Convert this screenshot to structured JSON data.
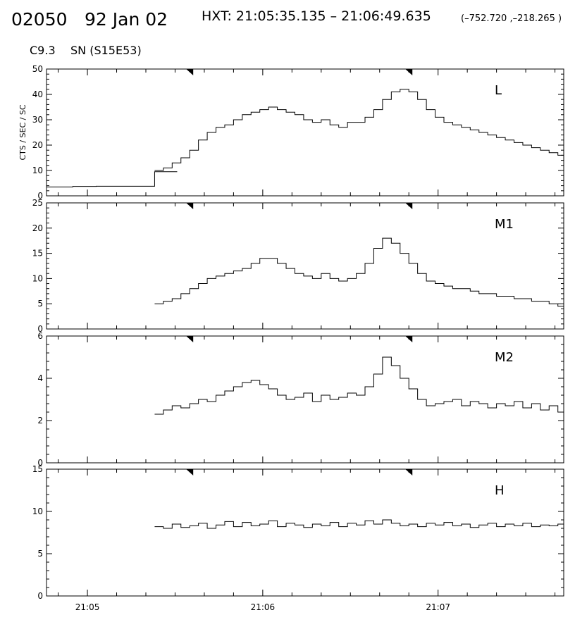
{
  "header": {
    "flare_id": "02050",
    "date": "92 Jan 02",
    "interval": "HXT: 21:05:35.135 – 21:06:49.635",
    "coords": "(–752.720 ,–218.265 )",
    "goes_class": "C9.3",
    "source": "SN (S15E53)"
  },
  "chart_data": [
    {
      "type": "line",
      "step": true,
      "panel_label": "L",
      "ylabel": "CTS / SEC / SC",
      "ylim": [
        0,
        50
      ],
      "yticks": [
        0,
        10,
        20,
        30,
        40,
        50
      ],
      "xlim": [
        "21:04:46",
        "21:07:43"
      ],
      "xticks": [
        "21:05",
        "21:06",
        "21:07"
      ],
      "accumulation_markers": [
        "21:05:35",
        "21:06:50"
      ],
      "series": [
        {
          "x": [
            "21:04:46",
            "21:04:55",
            "21:05:03",
            "21:05:15",
            "21:05:23",
            "21:05:30"
          ],
          "y": [
            3.5,
            3.7,
            3.8,
            3.8,
            9.5,
            9.5
          ]
        },
        {
          "x": [
            "21:05:23",
            "21:05:26",
            "21:05:29",
            "21:05:32",
            "21:05:35",
            "21:05:38",
            "21:05:41",
            "21:05:44",
            "21:05:47",
            "21:05:50",
            "21:05:53",
            "21:05:56",
            "21:05:59",
            "21:06:02",
            "21:06:05",
            "21:06:08",
            "21:06:11",
            "21:06:14",
            "21:06:17",
            "21:06:20",
            "21:06:23",
            "21:06:26",
            "21:06:29",
            "21:06:32",
            "21:06:35",
            "21:06:38",
            "21:06:41",
            "21:06:44",
            "21:06:47",
            "21:06:50",
            "21:06:53",
            "21:06:56",
            "21:06:59",
            "21:07:02",
            "21:07:05",
            "21:07:08",
            "21:07:11",
            "21:07:14",
            "21:07:17",
            "21:07:20",
            "21:07:23",
            "21:07:26",
            "21:07:29",
            "21:07:32",
            "21:07:35",
            "21:07:38",
            "21:07:41",
            "21:07:43"
          ],
          "y": [
            10,
            11,
            13,
            15,
            18,
            22,
            25,
            27,
            28,
            30,
            32,
            33,
            34,
            35,
            34,
            33,
            32,
            30,
            29,
            30,
            28,
            27,
            29,
            29,
            31,
            34,
            38,
            41,
            42,
            41,
            38,
            34,
            31,
            29,
            28,
            27,
            26,
            25,
            24,
            23,
            22,
            21,
            20,
            19,
            18,
            17,
            16,
            15
          ]
        }
      ]
    },
    {
      "type": "line",
      "step": true,
      "panel_label": "M1",
      "ylim": [
        0,
        25
      ],
      "yticks": [
        0,
        5,
        10,
        15,
        20,
        25
      ],
      "xlim": [
        "21:04:46",
        "21:07:43"
      ],
      "xticks": [
        "21:05",
        "21:06",
        "21:07"
      ],
      "accumulation_markers": [
        "21:05:35",
        "21:06:50"
      ],
      "series": [
        {
          "x": [
            "21:05:23",
            "21:05:26",
            "21:05:29",
            "21:05:32",
            "21:05:35",
            "21:05:38",
            "21:05:41",
            "21:05:44",
            "21:05:47",
            "21:05:50",
            "21:05:53",
            "21:05:56",
            "21:05:59",
            "21:06:02",
            "21:06:05",
            "21:06:08",
            "21:06:11",
            "21:06:14",
            "21:06:17",
            "21:06:20",
            "21:06:23",
            "21:06:26",
            "21:06:29",
            "21:06:32",
            "21:06:35",
            "21:06:38",
            "21:06:41",
            "21:06:44",
            "21:06:47",
            "21:06:50",
            "21:06:53",
            "21:06:56",
            "21:06:59",
            "21:07:02",
            "21:07:05",
            "21:07:08",
            "21:07:11",
            "21:07:14",
            "21:07:17",
            "21:07:20",
            "21:07:23",
            "21:07:26",
            "21:07:29",
            "21:07:32",
            "21:07:35",
            "21:07:38",
            "21:07:41",
            "21:07:43"
          ],
          "y": [
            5,
            5.5,
            6,
            7,
            8,
            9,
            10,
            10.5,
            11,
            11.5,
            12,
            13,
            14,
            14,
            13,
            12,
            11,
            10.5,
            10,
            11,
            10,
            9.5,
            10,
            11,
            13,
            16,
            18,
            17,
            15,
            13,
            11,
            9.5,
            9,
            8.5,
            8,
            8,
            7.5,
            7,
            7,
            6.5,
            6.5,
            6,
            6,
            5.5,
            5.5,
            5,
            4.5,
            5
          ]
        }
      ]
    },
    {
      "type": "line",
      "step": true,
      "panel_label": "M2",
      "ylim": [
        0,
        6
      ],
      "yticks": [
        0,
        2,
        4,
        6
      ],
      "xlim": [
        "21:04:46",
        "21:07:43"
      ],
      "xticks": [
        "21:05",
        "21:06",
        "21:07"
      ],
      "accumulation_markers": [
        "21:05:35",
        "21:06:50"
      ],
      "series": [
        {
          "x": [
            "21:05:23",
            "21:05:26",
            "21:05:29",
            "21:05:32",
            "21:05:35",
            "21:05:38",
            "21:05:41",
            "21:05:44",
            "21:05:47",
            "21:05:50",
            "21:05:53",
            "21:05:56",
            "21:05:59",
            "21:06:02",
            "21:06:05",
            "21:06:08",
            "21:06:11",
            "21:06:14",
            "21:06:17",
            "21:06:20",
            "21:06:23",
            "21:06:26",
            "21:06:29",
            "21:06:32",
            "21:06:35",
            "21:06:38",
            "21:06:41",
            "21:06:44",
            "21:06:47",
            "21:06:50",
            "21:06:53",
            "21:06:56",
            "21:06:59",
            "21:07:02",
            "21:07:05",
            "21:07:08",
            "21:07:11",
            "21:07:14",
            "21:07:17",
            "21:07:20",
            "21:07:23",
            "21:07:26",
            "21:07:29",
            "21:07:32",
            "21:07:35",
            "21:07:38",
            "21:07:41",
            "21:07:43"
          ],
          "y": [
            2.3,
            2.5,
            2.7,
            2.6,
            2.8,
            3.0,
            2.9,
            3.2,
            3.4,
            3.6,
            3.8,
            3.9,
            3.7,
            3.5,
            3.2,
            3.0,
            3.1,
            3.3,
            2.9,
            3.2,
            3.0,
            3.1,
            3.3,
            3.2,
            3.6,
            4.2,
            5.0,
            4.6,
            4.0,
            3.5,
            3.0,
            2.7,
            2.8,
            2.9,
            3.0,
            2.7,
            2.9,
            2.8,
            2.6,
            2.8,
            2.7,
            2.9,
            2.6,
            2.8,
            2.5,
            2.7,
            2.4,
            2.9
          ]
        }
      ]
    },
    {
      "type": "line",
      "step": true,
      "panel_label": "H",
      "ylim": [
        0,
        15
      ],
      "yticks": [
        0,
        5,
        10,
        15
      ],
      "xlim": [
        "21:04:46",
        "21:07:43"
      ],
      "xticks": [
        "21:05",
        "21:06",
        "21:07"
      ],
      "accumulation_markers": [
        "21:05:35",
        "21:06:50"
      ],
      "series": [
        {
          "x": [
            "21:05:23",
            "21:05:26",
            "21:05:29",
            "21:05:32",
            "21:05:35",
            "21:05:38",
            "21:05:41",
            "21:05:44",
            "21:05:47",
            "21:05:50",
            "21:05:53",
            "21:05:56",
            "21:05:59",
            "21:06:02",
            "21:06:05",
            "21:06:08",
            "21:06:11",
            "21:06:14",
            "21:06:17",
            "21:06:20",
            "21:06:23",
            "21:06:26",
            "21:06:29",
            "21:06:32",
            "21:06:35",
            "21:06:38",
            "21:06:41",
            "21:06:44",
            "21:06:47",
            "21:06:50",
            "21:06:53",
            "21:06:56",
            "21:06:59",
            "21:07:02",
            "21:07:05",
            "21:07:08",
            "21:07:11",
            "21:07:14",
            "21:07:17",
            "21:07:20",
            "21:07:23",
            "21:07:26",
            "21:07:29",
            "21:07:32",
            "21:07:35",
            "21:07:38",
            "21:07:41",
            "21:07:43"
          ],
          "y": [
            8.2,
            8.0,
            8.5,
            8.1,
            8.3,
            8.6,
            8.0,
            8.4,
            8.8,
            8.2,
            8.7,
            8.3,
            8.5,
            8.9,
            8.2,
            8.6,
            8.4,
            8.1,
            8.5,
            8.3,
            8.7,
            8.2,
            8.6,
            8.4,
            8.9,
            8.5,
            9.0,
            8.6,
            8.3,
            8.5,
            8.2,
            8.6,
            8.4,
            8.7,
            8.3,
            8.5,
            8.1,
            8.4,
            8.6,
            8.2,
            8.5,
            8.3,
            8.6,
            8.2,
            8.4,
            8.3,
            8.5,
            8.7
          ]
        }
      ]
    }
  ]
}
